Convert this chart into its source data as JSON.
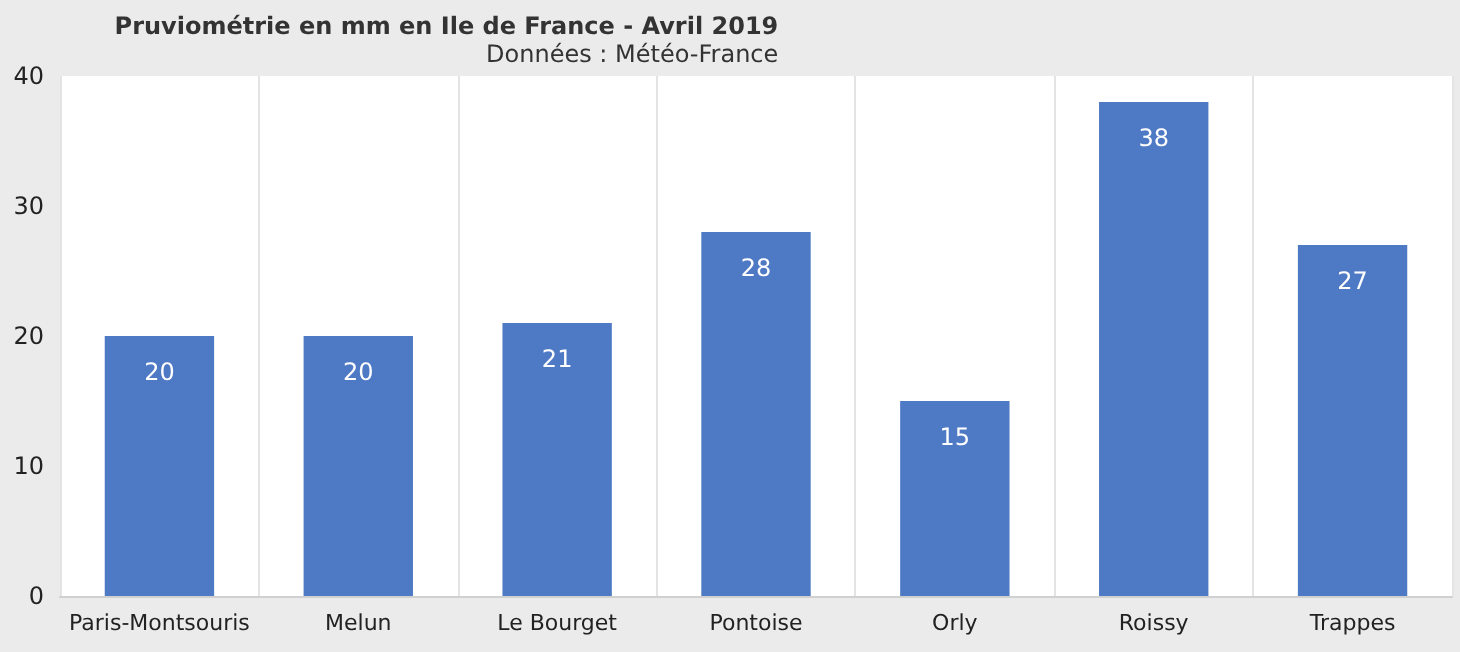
{
  "chart_data": {
    "type": "bar",
    "title": "Pruviométrie en mm en Ile de France - Avril 2019",
    "subtitle": "Données : Météo-France",
    "categories": [
      "Paris-Montsouris",
      "Melun",
      "Le Bourget",
      "Pontoise",
      "Orly",
      "Roissy",
      "Trappes"
    ],
    "values": [
      20,
      20,
      21,
      28,
      15,
      38,
      27
    ],
    "color": "#4e79c4",
    "ylim": [
      0,
      40
    ],
    "yticks": [
      0,
      10,
      20,
      30,
      40
    ],
    "grid": "x",
    "data_labels": true
  }
}
